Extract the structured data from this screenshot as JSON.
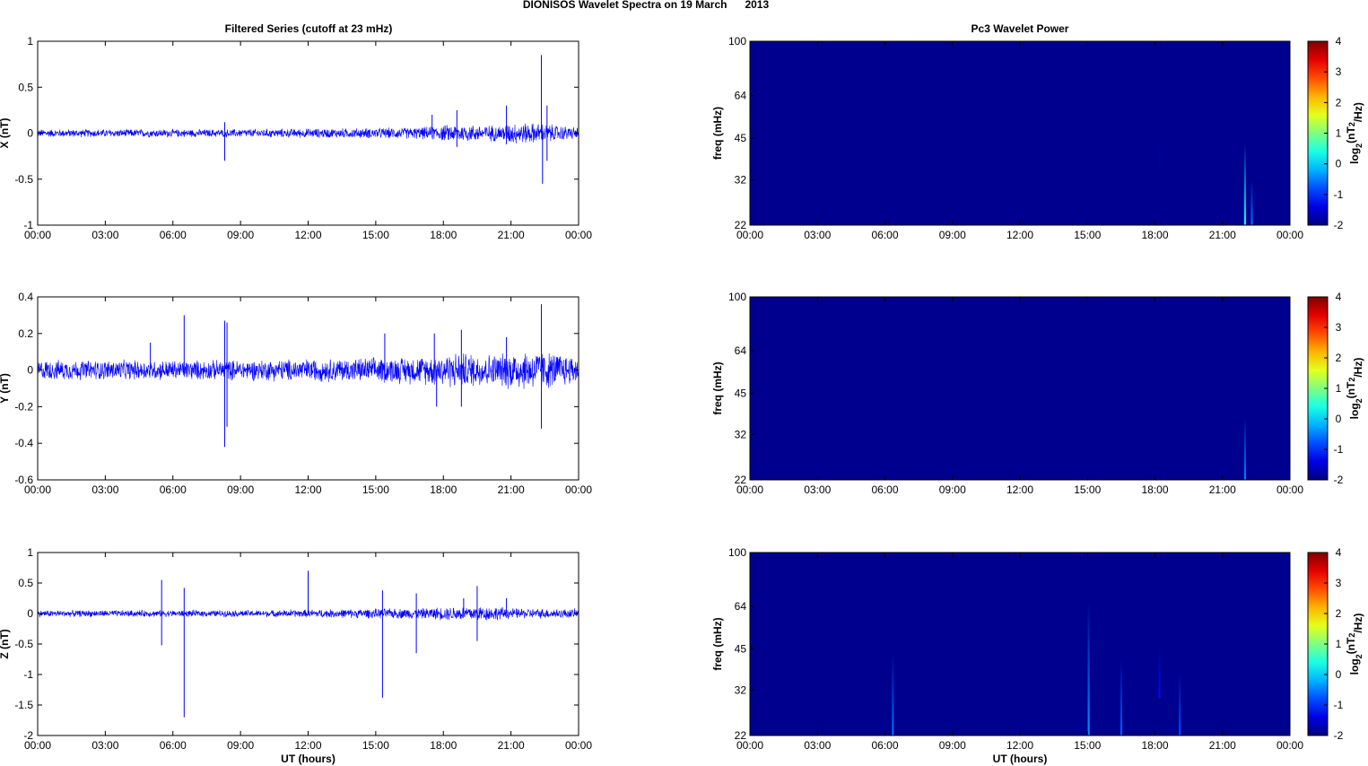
{
  "figure": {
    "suptitle": "DIONISOS Wavelet Spectra on 19 March      2013",
    "left_title": "Filtered Series (cutoff at 23 mHz)",
    "right_title": "Pc3 Wavelet Power",
    "colors": {
      "series": "#0000ff",
      "background": "#00008f"
    }
  },
  "chart_data": [
    {
      "type": "line",
      "name": "X",
      "ylabel": "X (nT)",
      "xlabel": "",
      "ylim": [
        -1,
        1
      ],
      "yticks": [
        "1",
        "0.5",
        "0",
        "-0.5",
        "-1"
      ],
      "ytick_values": [
        1,
        0.5,
        0,
        -0.5,
        -1
      ],
      "xticks": [
        "00:00",
        "03:00",
        "06:00",
        "09:00",
        "12:00",
        "15:00",
        "18:00",
        "21:00",
        "00:00"
      ],
      "x_range_hours": [
        0,
        24
      ],
      "noise_profile": [
        [
          0,
          0.04
        ],
        [
          8,
          0.04
        ],
        [
          14,
          0.05
        ],
        [
          17,
          0.06
        ],
        [
          18.5,
          0.09
        ],
        [
          20.5,
          0.08
        ],
        [
          21,
          0.11
        ],
        [
          22.3,
          0.1
        ],
        [
          24,
          0.06
        ]
      ],
      "spikes": [
        [
          8.3,
          0.12
        ],
        [
          8.3,
          -0.3
        ],
        [
          17.5,
          0.2
        ],
        [
          18.6,
          0.25
        ],
        [
          18.6,
          -0.15
        ],
        [
          20.8,
          0.3
        ],
        [
          20.8,
          -0.12
        ],
        [
          22.35,
          0.85
        ],
        [
          22.4,
          -0.55
        ],
        [
          22.6,
          0.3
        ],
        [
          22.6,
          -0.3
        ]
      ]
    },
    {
      "type": "line",
      "name": "Y",
      "ylabel": "Y (nT)",
      "xlabel": "",
      "ylim": [
        -0.6,
        0.4
      ],
      "yticks": [
        "0.4",
        "0.2",
        "0",
        "-0.2",
        "-0.4",
        "-0.6"
      ],
      "ytick_values": [
        0.4,
        0.2,
        0,
        -0.2,
        -0.4,
        -0.6
      ],
      "xticks": [
        "00:00",
        "03:00",
        "06:00",
        "09:00",
        "12:00",
        "15:00",
        "18:00",
        "21:00",
        "00:00"
      ],
      "x_range_hours": [
        0,
        24
      ],
      "noise_profile": [
        [
          0,
          0.05
        ],
        [
          8,
          0.05
        ],
        [
          14,
          0.06
        ],
        [
          17,
          0.07
        ],
        [
          18.5,
          0.09
        ],
        [
          20.5,
          0.08
        ],
        [
          21,
          0.1
        ],
        [
          22.3,
          0.1
        ],
        [
          24,
          0.07
        ]
      ],
      "spikes": [
        [
          5,
          0.15
        ],
        [
          6.5,
          0.3
        ],
        [
          8.3,
          0.27
        ],
        [
          8.3,
          -0.42
        ],
        [
          8.4,
          0.26
        ],
        [
          8.4,
          -0.31
        ],
        [
          15.4,
          0.2
        ],
        [
          17.6,
          0.2
        ],
        [
          17.7,
          -0.2
        ],
        [
          18.8,
          0.22
        ],
        [
          18.8,
          -0.2
        ],
        [
          20.8,
          0.18
        ],
        [
          22.35,
          0.36
        ],
        [
          22.35,
          -0.32
        ]
      ]
    },
    {
      "type": "line",
      "name": "Z",
      "ylabel": "Z (nT)",
      "xlabel": "UT (hours)",
      "ylim": [
        -2,
        1
      ],
      "yticks": [
        "1",
        "0.5",
        "0",
        "-0.5",
        "-1",
        "-1.5",
        "-2"
      ],
      "ytick_values": [
        1,
        0.5,
        0,
        -0.5,
        -1,
        -1.5,
        -2
      ],
      "xticks": [
        "00:00",
        "03:00",
        "06:00",
        "09:00",
        "12:00",
        "15:00",
        "18:00",
        "21:00",
        "00:00"
      ],
      "x_range_hours": [
        0,
        24
      ],
      "noise_profile": [
        [
          0,
          0.05
        ],
        [
          10,
          0.05
        ],
        [
          14,
          0.07
        ],
        [
          17,
          0.08
        ],
        [
          18.5,
          0.11
        ],
        [
          19.5,
          0.12
        ],
        [
          20.5,
          0.1
        ],
        [
          21,
          0.08
        ],
        [
          24,
          0.07
        ]
      ],
      "spikes": [
        [
          5.5,
          0.55
        ],
        [
          5.5,
          -0.52
        ],
        [
          6.5,
          0.42
        ],
        [
          6.5,
          -1.7
        ],
        [
          12,
          0.7
        ],
        [
          15.3,
          0.38
        ],
        [
          15.3,
          -1.38
        ],
        [
          16.8,
          -0.65
        ],
        [
          16.8,
          0.33
        ],
        [
          18.9,
          0.25
        ],
        [
          19.5,
          0.45
        ],
        [
          19.5,
          -0.45
        ],
        [
          20.8,
          0.25
        ]
      ]
    },
    {
      "type": "heatmap",
      "name": "X power",
      "ylabel": "freq (mHz)",
      "xlabel": "",
      "yscale": "log",
      "ylim": [
        22,
        100
      ],
      "yticks": [
        "100",
        "64",
        "45",
        "32",
        "22"
      ],
      "ytick_values": [
        100,
        64,
        45,
        32,
        22
      ],
      "xticks": [
        "00:00",
        "03:00",
        "06:00",
        "09:00",
        "12:00",
        "15:00",
        "18:00",
        "21:00",
        "00:00"
      ],
      "x_range_hours": [
        0,
        24
      ],
      "colorbar": {
        "label": "log2(nT2/Hz)",
        "ticks": [
          "4",
          "3",
          "2",
          "1",
          "0",
          "-1",
          "-2"
        ],
        "range": [
          -2,
          4
        ]
      },
      "features": [
        [
          22.0,
          22,
          43,
          0.3
        ],
        [
          22.3,
          22,
          32,
          -0.6
        ],
        [
          18.2,
          35,
          45,
          -1.8
        ]
      ]
    },
    {
      "type": "heatmap",
      "name": "Y power",
      "ylabel": "freq (mHz)",
      "xlabel": "",
      "yscale": "log",
      "ylim": [
        22,
        100
      ],
      "yticks": [
        "100",
        "64",
        "45",
        "32",
        "22"
      ],
      "ytick_values": [
        100,
        64,
        45,
        32,
        22
      ],
      "xticks": [
        "00:00",
        "03:00",
        "06:00",
        "09:00",
        "12:00",
        "15:00",
        "18:00",
        "21:00",
        "00:00"
      ],
      "x_range_hours": [
        0,
        24
      ],
      "colorbar": {
        "label": "log2(nT2/Hz)",
        "ticks": [
          "4",
          "3",
          "2",
          "1",
          "0",
          "-1",
          "-2"
        ],
        "range": [
          -2,
          4
        ]
      },
      "features": [
        [
          22.0,
          22,
          37,
          -0.5
        ]
      ]
    },
    {
      "type": "heatmap",
      "name": "Z power",
      "ylabel": "freq (mHz)",
      "xlabel": "UT (hours)",
      "yscale": "log",
      "ylim": [
        22,
        100
      ],
      "yticks": [
        "100",
        "64",
        "45",
        "32",
        "22"
      ],
      "ytick_values": [
        100,
        64,
        45,
        32,
        22
      ],
      "xticks": [
        "00:00",
        "03:00",
        "06:00",
        "09:00",
        "12:00",
        "15:00",
        "18:00",
        "21:00",
        "00:00"
      ],
      "x_range_hours": [
        0,
        24
      ],
      "colorbar": {
        "label": "log2(nT2/Hz)",
        "ticks": [
          "4",
          "3",
          "2",
          "1",
          "0",
          "-1",
          "-2"
        ],
        "range": [
          -2,
          4
        ]
      },
      "features": [
        [
          6.35,
          22,
          43,
          -0.6
        ],
        [
          15.05,
          22,
          66,
          -0.4
        ],
        [
          16.5,
          22,
          41,
          -0.7
        ],
        [
          18.2,
          30,
          46,
          -1.2
        ],
        [
          19.1,
          22,
          37,
          -0.8
        ]
      ]
    }
  ]
}
